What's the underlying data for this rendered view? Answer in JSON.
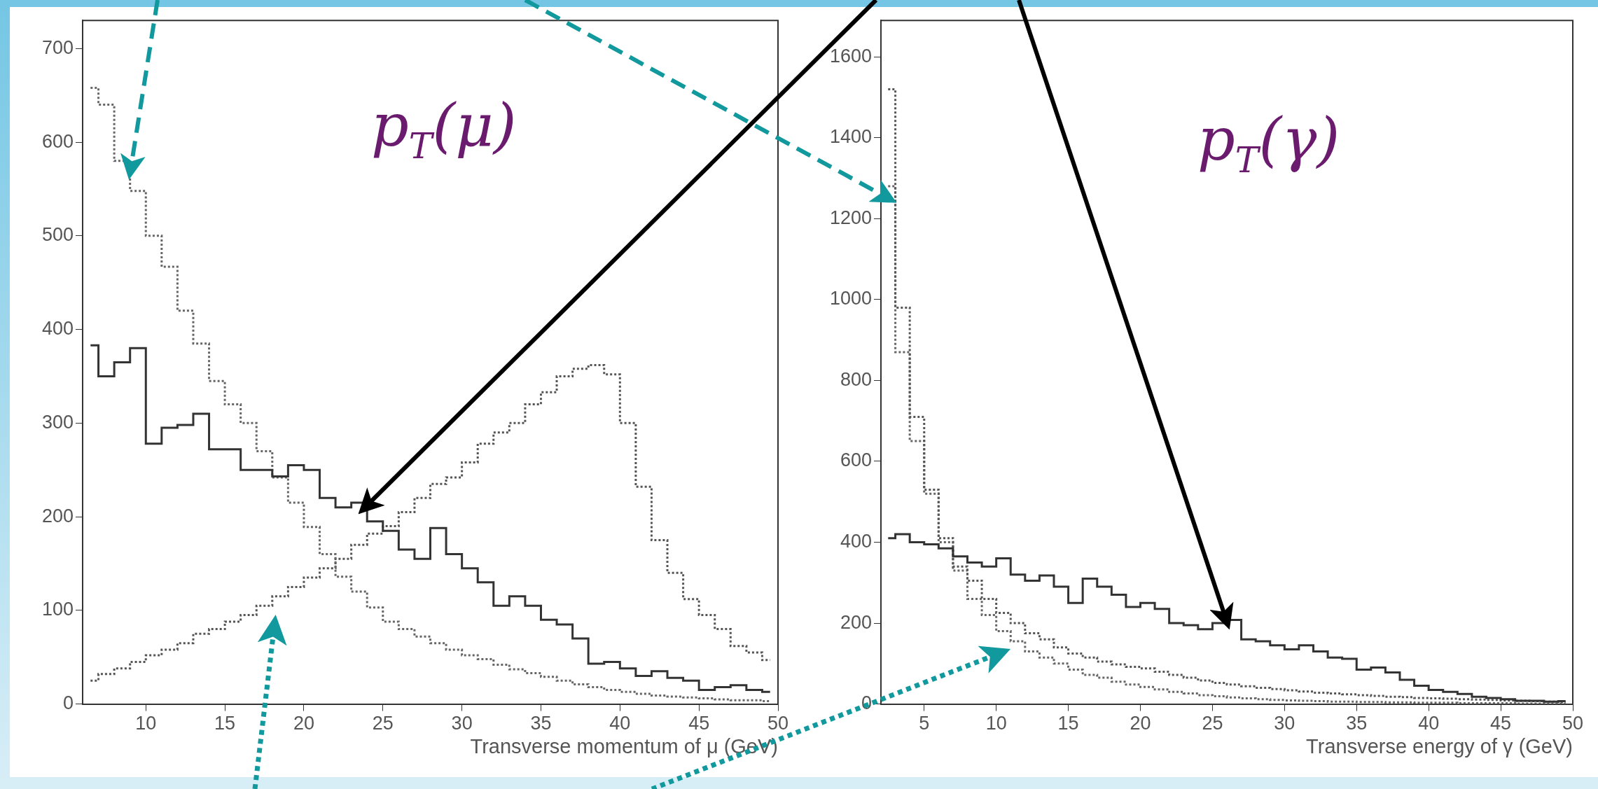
{
  "chart_data": [
    {
      "type": "step",
      "title": "p$_{T}$(μ)",
      "xlabel": "Transverse momentum of μ (GeV)",
      "x": [
        6.5,
        7.5,
        8.5,
        9.5,
        10.5,
        11.5,
        12.5,
        13.5,
        14.5,
        15.5,
        16.5,
        17.5,
        18.5,
        19.5,
        20.5,
        21.5,
        22.5,
        23.5,
        24.5,
        25.5,
        26.5,
        27.5,
        28.5,
        29.5,
        30.5,
        31.5,
        32.5,
        33.5,
        34.5,
        35.5,
        36.5,
        37.5,
        38.5,
        39.5,
        40.5,
        41.5,
        42.5,
        43.5,
        44.5,
        45.5,
        46.5,
        47.5,
        48.5,
        49.5
      ],
      "series": [
        {
          "color": "#333333",
          "line_style": "solid",
          "values": [
            383,
            350,
            365,
            380,
            278,
            295,
            298,
            310,
            272,
            272,
            250,
            250,
            243,
            255,
            250,
            220,
            210,
            215,
            195,
            185,
            165,
            155,
            188,
            160,
            145,
            130,
            105,
            115,
            105,
            90,
            85,
            70,
            43,
            45,
            38,
            30,
            35,
            28,
            25,
            15,
            18,
            20,
            15,
            13
          ]
        },
        {
          "color": "#666666",
          "line_style": "dotted",
          "values": [
            658,
            640,
            580,
            548,
            500,
            467,
            420,
            385,
            345,
            320,
            300,
            270,
            242,
            215,
            189,
            160,
            136,
            120,
            103,
            88,
            80,
            72,
            65,
            58,
            52,
            48,
            42,
            37,
            33,
            29,
            25,
            21,
            18,
            15,
            13,
            11,
            9,
            8,
            7,
            6,
            5,
            4,
            4,
            3
          ]
        },
        {
          "color": "#555555",
          "line_style": "dotted",
          "values": [
            25,
            32,
            38,
            45,
            52,
            58,
            65,
            75,
            80,
            88,
            95,
            105,
            115,
            125,
            135,
            145,
            155,
            170,
            182,
            190,
            205,
            220,
            235,
            242,
            258,
            278,
            290,
            300,
            320,
            333,
            350,
            358,
            362,
            352,
            300,
            232,
            175,
            140,
            112,
            95,
            80,
            62,
            55,
            47
          ]
        }
      ],
      "xlim": [
        6,
        50
      ],
      "ylim": [
        0,
        730
      ],
      "xticks": [
        10,
        15,
        20,
        25,
        30,
        35,
        40,
        45,
        50
      ],
      "yticks": [
        0,
        100,
        200,
        300,
        400,
        500,
        600,
        700
      ]
    },
    {
      "type": "step",
      "title": "p$_{T}$(γ)",
      "xlabel": "Transverse energy of γ (GeV)",
      "x": [
        2.5,
        3.5,
        4.5,
        5.5,
        6.5,
        7.5,
        8.5,
        9.5,
        10.5,
        11.5,
        12.5,
        13.5,
        14.5,
        15.5,
        16.5,
        17.5,
        18.5,
        19.5,
        20.5,
        21.5,
        22.5,
        23.5,
        24.5,
        25.5,
        26.5,
        27.5,
        28.5,
        29.5,
        30.5,
        31.5,
        32.5,
        33.5,
        34.5,
        35.5,
        36.5,
        37.5,
        38.5,
        39.5,
        40.5,
        41.5,
        42.5,
        43.5,
        44.5,
        45.5,
        46.5,
        47.5,
        48.5,
        49.5
      ],
      "series": [
        {
          "color": "#333333",
          "line_style": "solid",
          "values": [
            410,
            420,
            400,
            395,
            385,
            365,
            350,
            340,
            360,
            320,
            305,
            318,
            290,
            250,
            310,
            290,
            270,
            240,
            250,
            235,
            200,
            195,
            185,
            200,
            208,
            160,
            155,
            145,
            135,
            145,
            130,
            115,
            112,
            85,
            90,
            78,
            60,
            45,
            35,
            30,
            25,
            18,
            15,
            12,
            8,
            8,
            6,
            7
          ]
        },
        {
          "color": "#555555",
          "line_style": "dotted",
          "values": [
            1520,
            980,
            710,
            530,
            410,
            340,
            305,
            260,
            225,
            200,
            175,
            160,
            140,
            125,
            115,
            105,
            98,
            92,
            88,
            80,
            72,
            65,
            58,
            52,
            48,
            44,
            40,
            37,
            34,
            31,
            28,
            26,
            24,
            22,
            20,
            18,
            17,
            15,
            14,
            13,
            12,
            11,
            10,
            9,
            8,
            7,
            6,
            5
          ]
        },
        {
          "color": "#666666",
          "line_style": "dotted",
          "values": [
            1280,
            870,
            650,
            520,
            400,
            330,
            260,
            220,
            180,
            155,
            130,
            115,
            100,
            85,
            72,
            65,
            55,
            48,
            42,
            36,
            30,
            26,
            22,
            19,
            16,
            14,
            12,
            10,
            9,
            8,
            7,
            6,
            6,
            5,
            5,
            4,
            4,
            3,
            3,
            3,
            2,
            2,
            2,
            2,
            1,
            1,
            1,
            1
          ]
        }
      ],
      "xlim": [
        2,
        50
      ],
      "ylim": [
        0,
        1690
      ],
      "xticks": [
        5,
        10,
        15,
        20,
        25,
        30,
        35,
        40,
        45,
        50
      ],
      "yticks": [
        0,
        200,
        400,
        600,
        800,
        1000,
        1200,
        1400,
        1600
      ]
    }
  ]
}
